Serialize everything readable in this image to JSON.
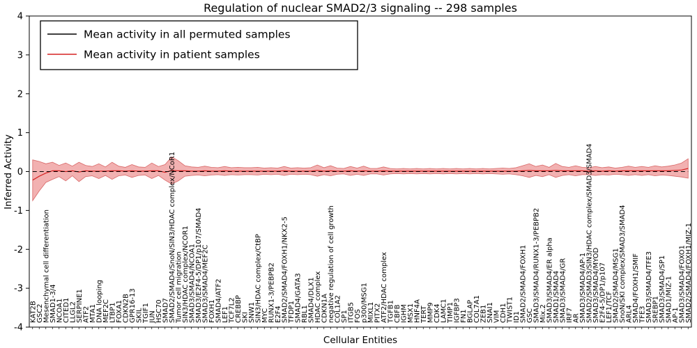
{
  "chart_data": {
    "type": "line",
    "title": "Regulation of nuclear SMAD2/3 signaling -- 298 samples",
    "xlabel": "Cellular Entities",
    "ylabel": "Inferred Activity",
    "ylim": [
      -4,
      4
    ],
    "yticks": [
      -4,
      -3,
      -2,
      -1,
      0,
      1,
      2,
      3,
      4
    ],
    "grid": false,
    "legend_position": "upper left",
    "colors": {
      "permuted_line": "#000000",
      "patient_line": "#d62222",
      "band_fill": "rgba(225,70,70,0.42)",
      "band_edge": "rgba(200,45,45,0.65)",
      "axis": "#000000"
    },
    "categories": [
      "KAT2B",
      "GSC2",
      "Mesenchymal cell differentiation",
      "SMAD1-3/4",
      "NCOA1",
      "CITED1",
      "LLGL2",
      "SERPINE1",
      "ATF2",
      "MTA1",
      "DNA looping",
      "MEF2C",
      "LTBP1",
      "FOXA1",
      "CDKN2B",
      "GPR16-13",
      "SKIL",
      "TGIF1",
      "JUN",
      "HSC70",
      "SMAD7",
      "SMAD2/SMAD4/SnoN/SIN3/HDAC complex/NCoR1",
      "Tumor cell migration",
      "SIN3/HDAC complex/NCOR1",
      "SMAD3/SMAD4/NCOA1",
      "SMAD3/E2F4-5/DP1/p107/SMAD4",
      "SMAD3/SMAD4/MEF2C",
      "FOXH1",
      "SMAD4/ATF2",
      "LEF1",
      "TCF7L2",
      "CREBBP",
      "SKI",
      "SNW1",
      "SIN3/HDAC complex/CtBP",
      "MYC",
      "RUNX1-3/PEBPB2",
      "E2F4",
      "SMAD2/SMAD4/FOXH1/NKX2-5",
      "TFDP1",
      "SMAD4/GATA3",
      "RBL1",
      "SMAD4/DLX1",
      "HDAC complex",
      "CDKN1A",
      "negative regulation of cell growth",
      "COL1A2",
      "SP1",
      "ITGB5",
      "FOS",
      "p300/MSG1",
      "MIXL1",
      "PITX2",
      "ATF2/HDAC complex",
      "TGFB1",
      "CBFB",
      "IGHM",
      "MSX1",
      "HNF4A",
      "TERT",
      "MMP9",
      "CDK4",
      "LAMC1",
      "TIMP1",
      "IGFBP3",
      "FN1",
      "BGLAP",
      "COL7A1",
      "ZEB1",
      "SNAI1",
      "VIM",
      "CDH1",
      "TWIST1",
      "ID1",
      "SMAD2/SMAD4/FOXH1",
      "GSC",
      "SMAD3/SMAD4/RUNX1-3/PEBPB2",
      "Mix.2",
      "SMAD3/SMAD4/ER alpha",
      "SMAD1/SMAD4",
      "SMAD3/SMAD4/GR",
      "IRF7",
      "AR",
      "SMAD3/SMAD4/AP-1",
      "SMAD2/SMAD3/SIN3/HDAC complex/SMAD3/SMAD4",
      "SMAD3/SMAD4/MYOD",
      "E2F4-5/DP1/p107",
      "LEF1/TCF",
      "SMAD2/SMAD4/MSG1",
      "SnoN/SKI complex/SMAD3/SMAD4",
      "ARL4",
      "SMAD4/FOXH1/SMIF",
      "TFE3",
      "SMAD3/SMAD4/TFE3",
      "SREBP1",
      "SMAD3/SMAD4/SP1",
      "SMAD1/MIZ-1",
      "AP-1",
      "SMAD3/SMAD4/FOXO1",
      "SMAD2/SMAD4/FOXH1/MIZ-1"
    ],
    "series": [
      {
        "name": "Mean activity in all permuted samples",
        "color": "#000000",
        "constant": 0.0
      },
      {
        "name": "Mean activity in patient samples",
        "color": "#d62222",
        "values": [
          -0.22,
          -0.12,
          -0.04,
          0.02,
          0.02,
          0.0,
          0.02,
          -0.01,
          0.02,
          0.01,
          0.01,
          0.01,
          0.02,
          0.02,
          0.01,
          0.02,
          0.01,
          0.01,
          0.02,
          0.02,
          -0.02,
          0.03,
          0.02,
          0.02,
          0.01,
          0.01,
          0.02,
          0.01,
          0.01,
          0.02,
          0.01,
          0.01,
          0.01,
          0.01,
          0.01,
          0.01,
          0.01,
          0.01,
          0.02,
          0.01,
          0.01,
          0.01,
          0.01,
          0.03,
          0.01,
          0.02,
          0.01,
          0.01,
          0.02,
          0.01,
          0.02,
          0.01,
          0.01,
          0.02,
          0.01,
          0.01,
          0.01,
          0.01,
          0.01,
          0.01,
          0.01,
          0.01,
          0.01,
          0.01,
          0.01,
          0.01,
          0.01,
          0.01,
          0.01,
          0.01,
          0.01,
          0.01,
          0.01,
          0.01,
          0.02,
          0.03,
          0.02,
          0.02,
          0.02,
          0.03,
          0.02,
          0.02,
          0.02,
          0.02,
          0.01,
          0.02,
          0.01,
          0.02,
          0.01,
          0.02,
          0.02,
          0.02,
          0.02,
          0.02,
          0.02,
          0.02,
          0.02,
          0.03,
          0.04,
          0.08
        ]
      }
    ],
    "patient_band": {
      "upper": [
        0.3,
        0.26,
        0.2,
        0.24,
        0.16,
        0.22,
        0.14,
        0.24,
        0.16,
        0.13,
        0.2,
        0.12,
        0.24,
        0.14,
        0.11,
        0.18,
        0.12,
        0.11,
        0.22,
        0.13,
        0.18,
        0.38,
        0.28,
        0.15,
        0.12,
        0.11,
        0.14,
        0.11,
        0.1,
        0.13,
        0.1,
        0.11,
        0.1,
        0.1,
        0.11,
        0.09,
        0.1,
        0.09,
        0.13,
        0.09,
        0.1,
        0.09,
        0.1,
        0.17,
        0.1,
        0.15,
        0.09,
        0.08,
        0.13,
        0.09,
        0.14,
        0.08,
        0.08,
        0.12,
        0.08,
        0.07,
        0.08,
        0.07,
        0.08,
        0.07,
        0.08,
        0.07,
        0.08,
        0.07,
        0.08,
        0.07,
        0.08,
        0.07,
        0.08,
        0.07,
        0.08,
        0.09,
        0.08,
        0.1,
        0.15,
        0.2,
        0.13,
        0.17,
        0.11,
        0.21,
        0.13,
        0.11,
        0.15,
        0.11,
        0.1,
        0.13,
        0.1,
        0.12,
        0.09,
        0.11,
        0.14,
        0.11,
        0.13,
        0.11,
        0.15,
        0.12,
        0.14,
        0.17,
        0.22,
        0.33
      ],
      "lower": [
        -0.75,
        -0.5,
        -0.28,
        -0.2,
        -0.13,
        -0.24,
        -0.11,
        -0.26,
        -0.13,
        -0.11,
        -0.18,
        -0.1,
        -0.2,
        -0.11,
        -0.09,
        -0.15,
        -0.1,
        -0.09,
        -0.18,
        -0.1,
        -0.22,
        -0.32,
        -0.24,
        -0.12,
        -0.1,
        -0.09,
        -0.11,
        -0.09,
        -0.08,
        -0.1,
        -0.08,
        -0.09,
        -0.08,
        -0.08,
        -0.09,
        -0.07,
        -0.08,
        -0.07,
        -0.1,
        -0.07,
        -0.08,
        -0.07,
        -0.08,
        -0.12,
        -0.08,
        -0.11,
        -0.07,
        -0.06,
        -0.1,
        -0.07,
        -0.1,
        -0.06,
        -0.06,
        -0.09,
        -0.06,
        -0.05,
        -0.06,
        -0.05,
        -0.06,
        -0.05,
        -0.06,
        -0.05,
        -0.06,
        -0.05,
        -0.06,
        -0.05,
        -0.06,
        -0.05,
        -0.06,
        -0.05,
        -0.06,
        -0.07,
        -0.06,
        -0.08,
        -0.11,
        -0.15,
        -0.1,
        -0.13,
        -0.08,
        -0.15,
        -0.1,
        -0.08,
        -0.11,
        -0.08,
        -0.08,
        -0.1,
        -0.08,
        -0.09,
        -0.07,
        -0.08,
        -0.1,
        -0.08,
        -0.1,
        -0.08,
        -0.11,
        -0.09,
        -0.1,
        -0.12,
        -0.14,
        -0.17
      ]
    }
  }
}
